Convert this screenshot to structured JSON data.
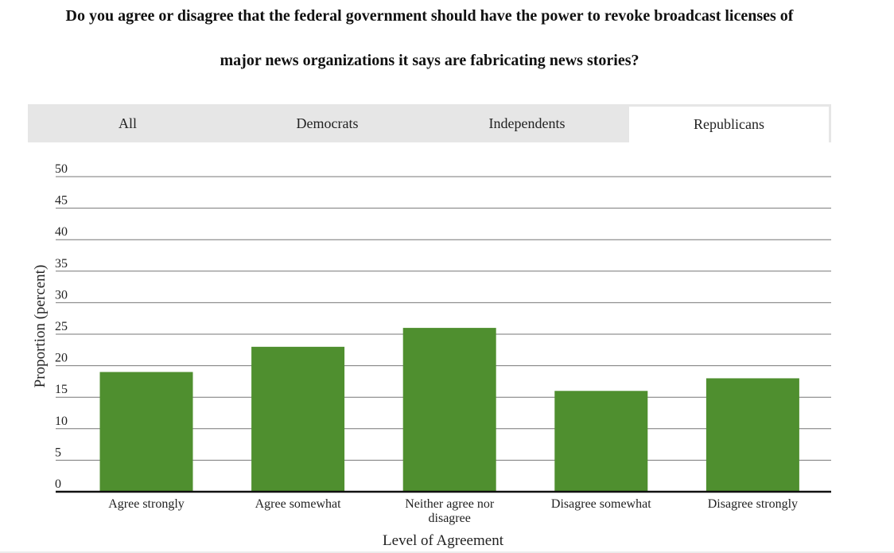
{
  "title_line1": "Do you agree or disagree that the federal government should have the power to revoke broadcast licenses of",
  "title_line2": "major news organizations it says are fabricating news stories?",
  "tabs": [
    {
      "label": "All",
      "active": false
    },
    {
      "label": "Democrats",
      "active": false
    },
    {
      "label": "Independents",
      "active": false
    },
    {
      "label": "Republicans",
      "active": true
    }
  ],
  "chart_data": {
    "type": "bar",
    "categories": [
      [
        "Agree strongly"
      ],
      [
        "Agree somewhat"
      ],
      [
        "Neither agree nor",
        "disagree"
      ],
      [
        "Disagree somewhat"
      ],
      [
        "Disagree strongly"
      ]
    ],
    "values": [
      19,
      23,
      26,
      16,
      18
    ],
    "ylabel": "Proportion (percent)",
    "xlabel": "Level of Agreement",
    "ylim": [
      0,
      50
    ],
    "yticks": [
      0,
      5,
      10,
      15,
      20,
      25,
      30,
      35,
      40,
      45,
      50
    ],
    "grid": true,
    "bar_color": "#4f8f2f"
  }
}
